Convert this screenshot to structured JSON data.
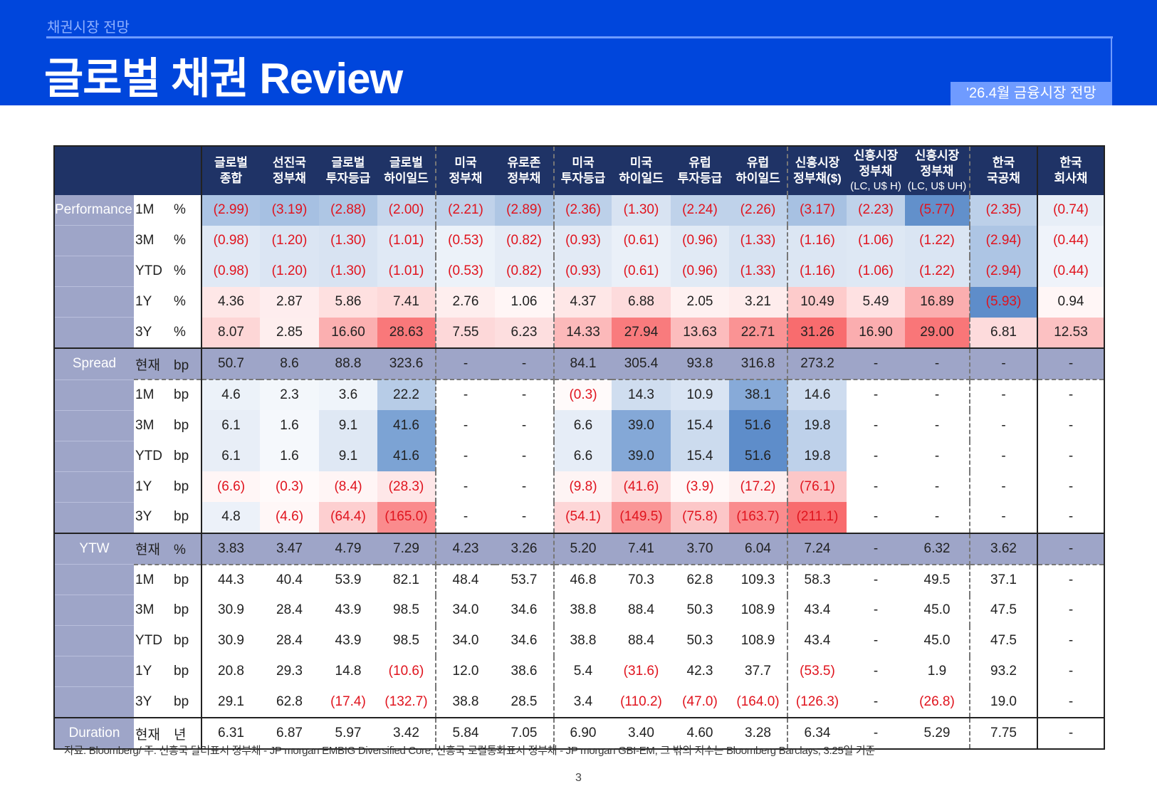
{
  "header": {
    "section": "채권시장 전망",
    "title": "글로벌 채권 Review",
    "badge": "'26.4월 금융시장 전망"
  },
  "colors": {
    "header_bg": "#0046dc",
    "table_header_bg": "#1f3366",
    "section_bg": "#9ea5c8",
    "negative_text": "#e0141e",
    "heat_blue": "#5b8bc9",
    "heat_red": "#f8696b"
  },
  "table": {
    "columns": [
      {
        "lines": [
          "글로벌",
          "종합"
        ]
      },
      {
        "lines": [
          "선진국",
          "정부채"
        ]
      },
      {
        "lines": [
          "글로벌",
          "투자등급"
        ]
      },
      {
        "lines": [
          "글로벌",
          "하이일드"
        ]
      },
      {
        "lines": [
          "미국",
          "정부채"
        ]
      },
      {
        "lines": [
          "유로존",
          "정부채"
        ]
      },
      {
        "lines": [
          "미국",
          "투자등급"
        ]
      },
      {
        "lines": [
          "미국",
          "하이일드"
        ]
      },
      {
        "lines": [
          "유럽",
          "투자등급"
        ]
      },
      {
        "lines": [
          "유럽",
          "하이일드"
        ]
      },
      {
        "lines": [
          "신흥시장",
          "정부채($)"
        ]
      },
      {
        "lines": [
          "신흥시장",
          "정부채"
        ],
        "note": "(LC, U$ H)"
      },
      {
        "lines": [
          "신흥시장",
          "정부채"
        ],
        "note": "(LC, U$ UH)"
      },
      {
        "lines": [
          "한국",
          "국공채"
        ]
      },
      {
        "lines": [
          "한국",
          "회사채"
        ]
      }
    ],
    "sections": [
      {
        "label": "Performance",
        "heat": true,
        "rows": [
          {
            "period": "1M",
            "unit": "%",
            "values": [
              "(2.99)",
              "(3.19)",
              "(2.88)",
              "(2.00)",
              "(2.21)",
              "(2.89)",
              "(2.36)",
              "(1.30)",
              "(2.24)",
              "(2.26)",
              "(3.17)",
              "(2.23)",
              "(5.77)",
              "(2.35)",
              "(0.74)"
            ]
          },
          {
            "period": "3M",
            "unit": "%",
            "values": [
              "(0.98)",
              "(1.20)",
              "(1.30)",
              "(1.01)",
              "(0.53)",
              "(0.82)",
              "(0.93)",
              "(0.61)",
              "(0.96)",
              "(1.33)",
              "(1.16)",
              "(1.06)",
              "(1.22)",
              "(2.94)",
              "(0.44)"
            ]
          },
          {
            "period": "YTD",
            "unit": "%",
            "values": [
              "(0.98)",
              "(1.20)",
              "(1.30)",
              "(1.01)",
              "(0.53)",
              "(0.82)",
              "(0.93)",
              "(0.61)",
              "(0.96)",
              "(1.33)",
              "(1.16)",
              "(1.06)",
              "(1.22)",
              "(2.94)",
              "(0.44)"
            ]
          },
          {
            "period": "1Y",
            "unit": "%",
            "values": [
              "4.36",
              "2.87",
              "5.86",
              "7.41",
              "2.76",
              "1.06",
              "4.37",
              "6.88",
              "2.05",
              "3.21",
              "10.49",
              "5.49",
              "16.89",
              "(5.93)",
              "0.94"
            ]
          },
          {
            "period": "3Y",
            "unit": "%",
            "values": [
              "8.07",
              "2.85",
              "16.60",
              "28.63",
              "7.55",
              "6.23",
              "14.33",
              "27.94",
              "13.63",
              "22.71",
              "31.26",
              "16.90",
              "29.00",
              "6.81",
              "12.53"
            ]
          }
        ]
      },
      {
        "label": "Spread",
        "heat": true,
        "heat_invert": true,
        "rows": [
          {
            "period": "현재",
            "unit": "bp",
            "current": true,
            "values": [
              "50.7",
              "8.6",
              "88.8",
              "323.6",
              "-",
              "-",
              "84.1",
              "305.4",
              "93.8",
              "316.8",
              "273.2",
              "-",
              "-",
              "-",
              "-"
            ]
          },
          {
            "period": "1M",
            "unit": "bp",
            "values": [
              "4.6",
              "2.3",
              "3.6",
              "22.2",
              "-",
              "-",
              "(0.3)",
              "14.3",
              "10.9",
              "38.1",
              "14.6",
              "-",
              "-",
              "-",
              "-"
            ]
          },
          {
            "period": "3M",
            "unit": "bp",
            "values": [
              "6.1",
              "1.6",
              "9.1",
              "41.6",
              "-",
              "-",
              "6.6",
              "39.0",
              "15.4",
              "51.6",
              "19.8",
              "-",
              "-",
              "-",
              "-"
            ]
          },
          {
            "period": "YTD",
            "unit": "bp",
            "values": [
              "6.1",
              "1.6",
              "9.1",
              "41.6",
              "-",
              "-",
              "6.6",
              "39.0",
              "15.4",
              "51.6",
              "19.8",
              "-",
              "-",
              "-",
              "-"
            ]
          },
          {
            "period": "1Y",
            "unit": "bp",
            "values": [
              "(6.6)",
              "(0.3)",
              "(8.4)",
              "(28.3)",
              "-",
              "-",
              "(9.8)",
              "(41.6)",
              "(3.9)",
              "(17.2)",
              "(76.1)",
              "-",
              "-",
              "-",
              "-"
            ]
          },
          {
            "period": "3Y",
            "unit": "bp",
            "values": [
              "4.8",
              "(4.6)",
              "(64.4)",
              "(165.0)",
              "-",
              "-",
              "(54.1)",
              "(149.5)",
              "(75.8)",
              "(163.7)",
              "(211.1)",
              "-",
              "-",
              "-",
              "-"
            ]
          }
        ]
      },
      {
        "label": "YTW",
        "heat": false,
        "rows": [
          {
            "period": "현재",
            "unit": "%",
            "current": true,
            "values": [
              "3.83",
              "3.47",
              "4.79",
              "7.29",
              "4.23",
              "3.26",
              "5.20",
              "7.41",
              "3.70",
              "6.04",
              "7.24",
              "-",
              "6.32",
              "3.62",
              "-"
            ]
          },
          {
            "period": "1M",
            "unit": "bp",
            "values": [
              "44.3",
              "40.4",
              "53.9",
              "82.1",
              "48.4",
              "53.7",
              "46.8",
              "70.3",
              "62.8",
              "109.3",
              "58.3",
              "-",
              "49.5",
              "37.1",
              "-"
            ]
          },
          {
            "period": "3M",
            "unit": "bp",
            "values": [
              "30.9",
              "28.4",
              "43.9",
              "98.5",
              "34.0",
              "34.6",
              "38.8",
              "88.4",
              "50.3",
              "108.9",
              "43.4",
              "-",
              "45.0",
              "47.5",
              "-"
            ]
          },
          {
            "period": "YTD",
            "unit": "bp",
            "values": [
              "30.9",
              "28.4",
              "43.9",
              "98.5",
              "34.0",
              "34.6",
              "38.8",
              "88.4",
              "50.3",
              "108.9",
              "43.4",
              "-",
              "45.0",
              "47.5",
              "-"
            ]
          },
          {
            "period": "1Y",
            "unit": "bp",
            "values": [
              "20.8",
              "29.3",
              "14.8",
              "(10.6)",
              "12.0",
              "38.6",
              "5.4",
              "(31.6)",
              "42.3",
              "37.7",
              "(53.5)",
              "-",
              "1.9",
              "93.2",
              "-"
            ]
          },
          {
            "period": "3Y",
            "unit": "bp",
            "values": [
              "29.1",
              "62.8",
              "(17.4)",
              "(132.7)",
              "38.8",
              "28.5",
              "3.4",
              "(110.2)",
              "(47.0)",
              "(164.0)",
              "(126.3)",
              "-",
              "(26.8)",
              "19.0",
              "-"
            ]
          }
        ]
      },
      {
        "label": "Duration",
        "heat": false,
        "rows": [
          {
            "period": "현재",
            "unit": "년",
            "values": [
              "6.31",
              "6.87",
              "5.97",
              "3.42",
              "5.84",
              "7.05",
              "6.90",
              "3.40",
              "4.60",
              "3.28",
              "6.34",
              "-",
              "5.29",
              "7.75",
              "-"
            ]
          }
        ]
      }
    ]
  },
  "footnote": "자료: Bloomberg/ 주: 신흥국 달러표시 정부채 - JP morgan EMBIG Diversified Core, 신흥국 로컬통화표시 정부채 - JP morgan GBI-EM, 그 밖의 지수는 Bloomberg Barclays, 3.25일 기준",
  "page_number": "3"
}
